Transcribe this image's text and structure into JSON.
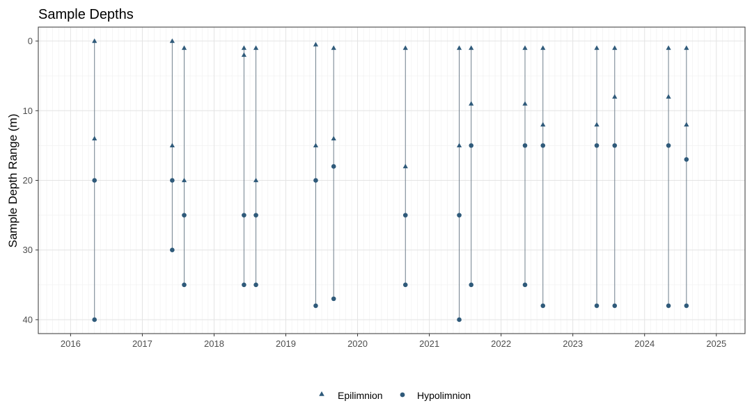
{
  "chart_data": {
    "type": "scatter",
    "title": "Sample Depths",
    "xlabel": "",
    "ylabel": "Sample Depth Range (m)",
    "x_range": [
      2015.55,
      2025.4
    ],
    "ylim": [
      42,
      -2
    ],
    "y_reversed": true,
    "x_ticks": [
      "2016",
      "2017",
      "2018",
      "2019",
      "2020",
      "2021",
      "2022",
      "2023",
      "2024",
      "2025"
    ],
    "y_ticks": [
      0,
      10,
      20,
      30,
      40
    ],
    "grid": true,
    "legend_position": "bottom",
    "marker_color": "#2f5a7a",
    "line_color": "#6f7f8c",
    "series": [
      {
        "name": "Epilimnion",
        "marker": "triangle",
        "points": [
          {
            "x": "2016-05",
            "y": 0
          },
          {
            "x": "2016-05",
            "y": 14
          },
          {
            "x": "2017-06",
            "y": 0
          },
          {
            "x": "2017-06",
            "y": 15
          },
          {
            "x": "2017-08",
            "y": 1
          },
          {
            "x": "2017-08",
            "y": 20
          },
          {
            "x": "2018-06",
            "y": 1
          },
          {
            "x": "2018-06",
            "y": 2
          },
          {
            "x": "2018-08",
            "y": 1
          },
          {
            "x": "2018-08",
            "y": 20
          },
          {
            "x": "2019-06",
            "y": 0.5
          },
          {
            "x": "2019-06",
            "y": 15
          },
          {
            "x": "2019-09",
            "y": 1
          },
          {
            "x": "2019-09",
            "y": 14
          },
          {
            "x": "2020-09",
            "y": 1
          },
          {
            "x": "2020-09",
            "y": 18
          },
          {
            "x": "2021-06",
            "y": 1
          },
          {
            "x": "2021-06",
            "y": 15
          },
          {
            "x": "2021-08",
            "y": 1
          },
          {
            "x": "2021-08",
            "y": 9
          },
          {
            "x": "2022-05",
            "y": 1
          },
          {
            "x": "2022-05",
            "y": 9
          },
          {
            "x": "2022-08",
            "y": 1
          },
          {
            "x": "2022-08",
            "y": 12
          },
          {
            "x": "2023-05",
            "y": 1
          },
          {
            "x": "2023-05",
            "y": 12
          },
          {
            "x": "2023-08",
            "y": 1
          },
          {
            "x": "2023-08",
            "y": 8
          },
          {
            "x": "2024-05",
            "y": 1
          },
          {
            "x": "2024-05",
            "y": 8
          },
          {
            "x": "2024-08",
            "y": 1
          },
          {
            "x": "2024-08",
            "y": 12
          }
        ]
      },
      {
        "name": "Hypolimnion",
        "marker": "circle",
        "points": [
          {
            "x": "2016-05",
            "y": 20
          },
          {
            "x": "2016-05",
            "y": 40
          },
          {
            "x": "2017-06",
            "y": 20
          },
          {
            "x": "2017-06",
            "y": 30
          },
          {
            "x": "2017-08",
            "y": 25
          },
          {
            "x": "2017-08",
            "y": 35
          },
          {
            "x": "2018-06",
            "y": 25
          },
          {
            "x": "2018-06",
            "y": 35
          },
          {
            "x": "2018-08",
            "y": 25
          },
          {
            "x": "2018-08",
            "y": 35
          },
          {
            "x": "2019-06",
            "y": 20
          },
          {
            "x": "2019-06",
            "y": 38
          },
          {
            "x": "2019-09",
            "y": 18
          },
          {
            "x": "2019-09",
            "y": 37
          },
          {
            "x": "2020-09",
            "y": 25
          },
          {
            "x": "2020-09",
            "y": 35
          },
          {
            "x": "2021-06",
            "y": 25
          },
          {
            "x": "2021-06",
            "y": 40
          },
          {
            "x": "2021-08",
            "y": 15
          },
          {
            "x": "2021-08",
            "y": 35
          },
          {
            "x": "2022-05",
            "y": 15
          },
          {
            "x": "2022-05",
            "y": 35
          },
          {
            "x": "2022-08",
            "y": 15
          },
          {
            "x": "2022-08",
            "y": 38
          },
          {
            "x": "2023-05",
            "y": 15
          },
          {
            "x": "2023-05",
            "y": 38
          },
          {
            "x": "2023-08",
            "y": 15
          },
          {
            "x": "2023-08",
            "y": 38
          },
          {
            "x": "2024-05",
            "y": 15
          },
          {
            "x": "2024-05",
            "y": 38
          },
          {
            "x": "2024-08",
            "y": 17
          },
          {
            "x": "2024-08",
            "y": 38
          }
        ]
      }
    ],
    "ranges": [
      {
        "x": "2016-05",
        "top": 0,
        "bottom": 40
      },
      {
        "x": "2017-06",
        "top": 0,
        "bottom": 30
      },
      {
        "x": "2017-08",
        "top": 1,
        "bottom": 35
      },
      {
        "x": "2018-06",
        "top": 1,
        "bottom": 35
      },
      {
        "x": "2018-08",
        "top": 1,
        "bottom": 35
      },
      {
        "x": "2019-06",
        "top": 0.5,
        "bottom": 38
      },
      {
        "x": "2019-09",
        "top": 1,
        "bottom": 37
      },
      {
        "x": "2020-09",
        "top": 1,
        "bottom": 35
      },
      {
        "x": "2021-06",
        "top": 1,
        "bottom": 40
      },
      {
        "x": "2021-08",
        "top": 1,
        "bottom": 35
      },
      {
        "x": "2022-05",
        "top": 1,
        "bottom": 35
      },
      {
        "x": "2022-08",
        "top": 1,
        "bottom": 38
      },
      {
        "x": "2023-05",
        "top": 1,
        "bottom": 38
      },
      {
        "x": "2023-08",
        "top": 1,
        "bottom": 38
      },
      {
        "x": "2024-05",
        "top": 1,
        "bottom": 38
      },
      {
        "x": "2024-08",
        "top": 1,
        "bottom": 38
      }
    ]
  }
}
